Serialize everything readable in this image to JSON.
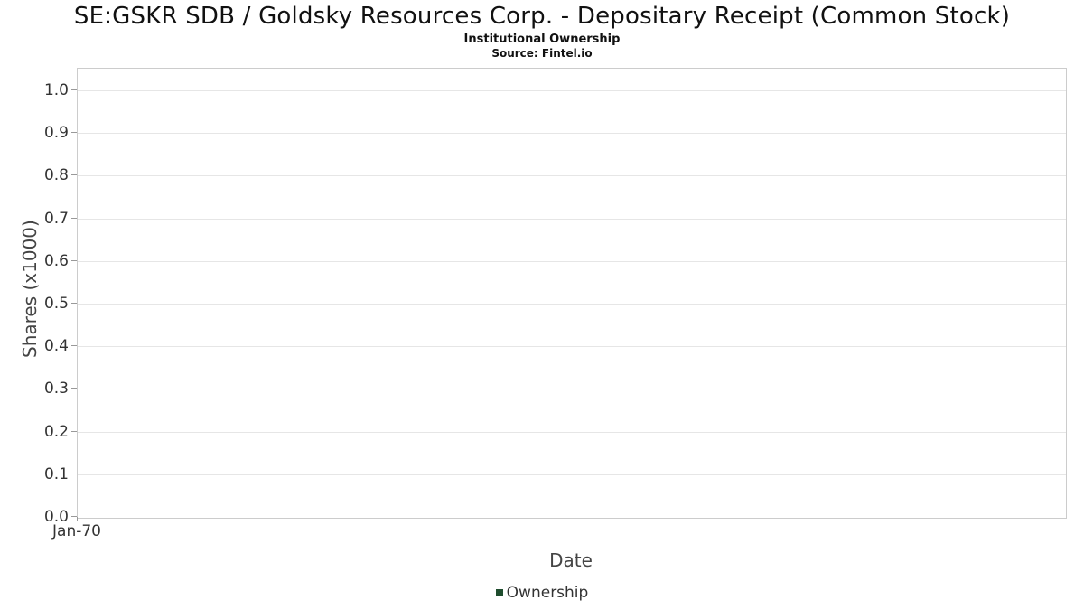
{
  "chart_data": {
    "type": "line",
    "title": "SE:GSKR SDB / Goldsky Resources Corp. - Depositary Receipt (Common Stock)",
    "subtitle": "Institutional Ownership",
    "source": "Source: Fintel.io",
    "xlabel": "Date",
    "ylabel": "Shares (x1000)",
    "x_ticks": [
      "Jan-70"
    ],
    "y_ticks": [
      0.0,
      0.1,
      0.2,
      0.3,
      0.4,
      0.5,
      0.6,
      0.7,
      0.8,
      0.9,
      1.0
    ],
    "ylim": [
      0.0,
      1.0
    ],
    "grid": true,
    "legend_position": "bottom",
    "series": [
      {
        "name": "Ownership",
        "color": "#1f4d2e",
        "x": [],
        "values": []
      }
    ]
  }
}
